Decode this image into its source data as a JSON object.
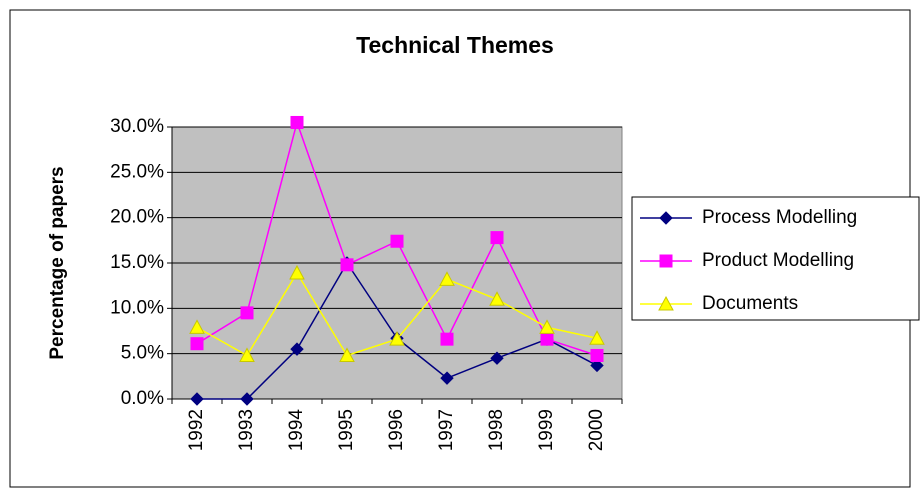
{
  "chart_data": {
    "type": "line",
    "title": "Technical Themes",
    "y_label": "Percentage of papers",
    "categories": [
      "1992",
      "1993",
      "1994",
      "1995",
      "1996",
      "1997",
      "1998",
      "1999",
      "2000"
    ],
    "series": [
      {
        "name": "Process Modelling",
        "color": "#000080",
        "marker": "diamond",
        "values": [
          0,
          0,
          5.5,
          15.0,
          6.7,
          2.3,
          4.5,
          6.6,
          3.7
        ]
      },
      {
        "name": "Product Modelling",
        "color": "#ff00ff",
        "marker": "square",
        "values": [
          6.1,
          9.5,
          30.5,
          14.8,
          17.4,
          6.6,
          17.8,
          6.6,
          4.8
        ]
      },
      {
        "name": "Documents",
        "color": "#ffff00",
        "marker": "triangle",
        "values": [
          7.9,
          4.8,
          13.9,
          4.8,
          6.6,
          13.2,
          11.0,
          7.9,
          6.7
        ]
      }
    ],
    "ylim": [
      0,
      30
    ],
    "yticks": [
      {
        "value": 0,
        "label": "0.0%"
      },
      {
        "value": 5,
        "label": "5.0%"
      },
      {
        "value": 10,
        "label": "10.0%"
      },
      {
        "value": 15,
        "label": "15.0%"
      },
      {
        "value": 20,
        "label": "20.0%"
      },
      {
        "value": 25,
        "label": "25.0%"
      },
      {
        "value": 30,
        "label": "30.0%"
      }
    ],
    "grid": true,
    "legend": "right",
    "plot_background": "#c0c0c0"
  }
}
